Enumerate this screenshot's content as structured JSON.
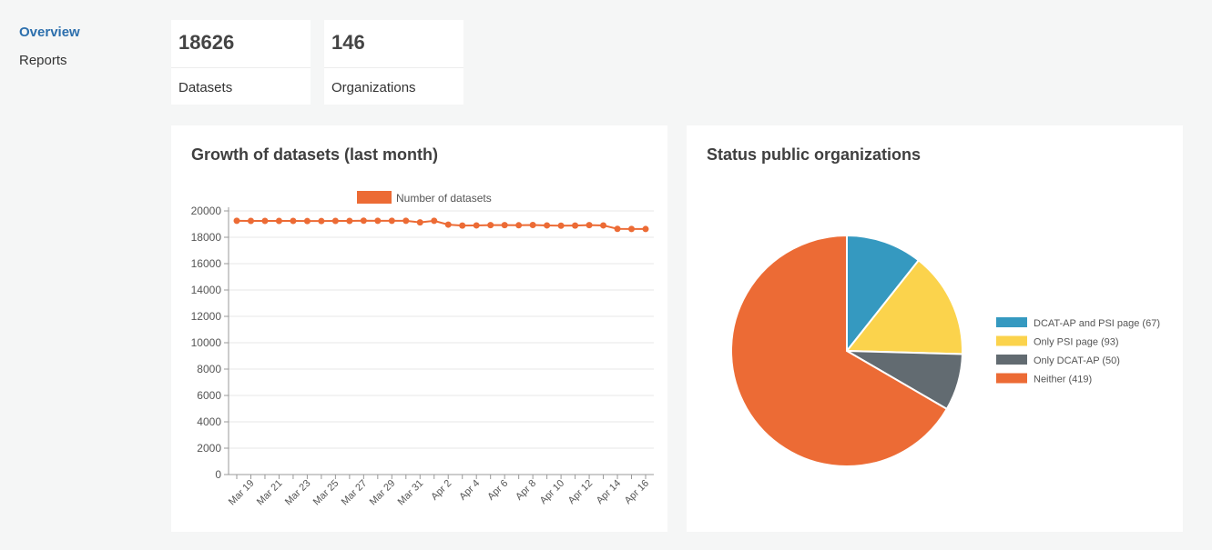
{
  "sidebar": {
    "items": [
      {
        "label": "Overview",
        "active": true
      },
      {
        "label": "Reports",
        "active": false
      }
    ]
  },
  "stats": [
    {
      "value": "18626",
      "label": "Datasets"
    },
    {
      "value": "146",
      "label": "Organizations"
    }
  ],
  "colors": {
    "accent": "#2c6fad",
    "line": "#ec6b35",
    "blue": "#3599c0",
    "yellow": "#fbd34c",
    "gray": "#626b71",
    "orange": "#ec6b35"
  },
  "chart_data": [
    {
      "type": "line",
      "title": "Growth of datasets (last month)",
      "legend_position": "top",
      "grid": true,
      "ylim": [
        0,
        20000
      ],
      "yticks": [
        "0",
        "2000",
        "4000",
        "6000",
        "8000",
        "10000",
        "12000",
        "14000",
        "16000",
        "18000",
        "20000"
      ],
      "x": [
        "Mar 18",
        "Mar 19",
        "Mar 20",
        "Mar 21",
        "Mar 22",
        "Mar 23",
        "Mar 24",
        "Mar 25",
        "Mar 26",
        "Mar 27",
        "Mar 28",
        "Mar 29",
        "Mar 30",
        "Mar 31",
        "Apr 1",
        "Apr 2",
        "Apr 3",
        "Apr 4",
        "Apr 5",
        "Apr 6",
        "Apr 7",
        "Apr 8",
        "Apr 9",
        "Apr 10",
        "Apr 11",
        "Apr 12",
        "Apr 13",
        "Apr 14",
        "Apr 15",
        "Apr 16"
      ],
      "xtick_labels": [
        "Mar 19",
        "Mar 21",
        "Mar 23",
        "Mar 25",
        "Mar 27",
        "Mar 29",
        "Mar 31",
        "Apr 2",
        "Apr 4",
        "Apr 6",
        "Apr 8",
        "Apr 10",
        "Apr 12",
        "Apr 14",
        "Apr 16"
      ],
      "series": [
        {
          "name": "Number of datasets",
          "values": [
            19250,
            19240,
            19240,
            19240,
            19240,
            19230,
            19230,
            19240,
            19240,
            19260,
            19250,
            19250,
            19250,
            19130,
            19250,
            18960,
            18890,
            18900,
            18920,
            18920,
            18910,
            18930,
            18900,
            18880,
            18890,
            18920,
            18900,
            18640,
            18630,
            18626
          ]
        }
      ]
    },
    {
      "type": "pie",
      "title": "Status public organizations",
      "legend_position": "right",
      "categories": [
        "DCAT-AP and PSI page (67)",
        "Only PSI page (93)",
        "Only DCAT-AP (50)",
        "Neither (419)"
      ],
      "values": [
        67,
        93,
        50,
        419
      ]
    }
  ]
}
